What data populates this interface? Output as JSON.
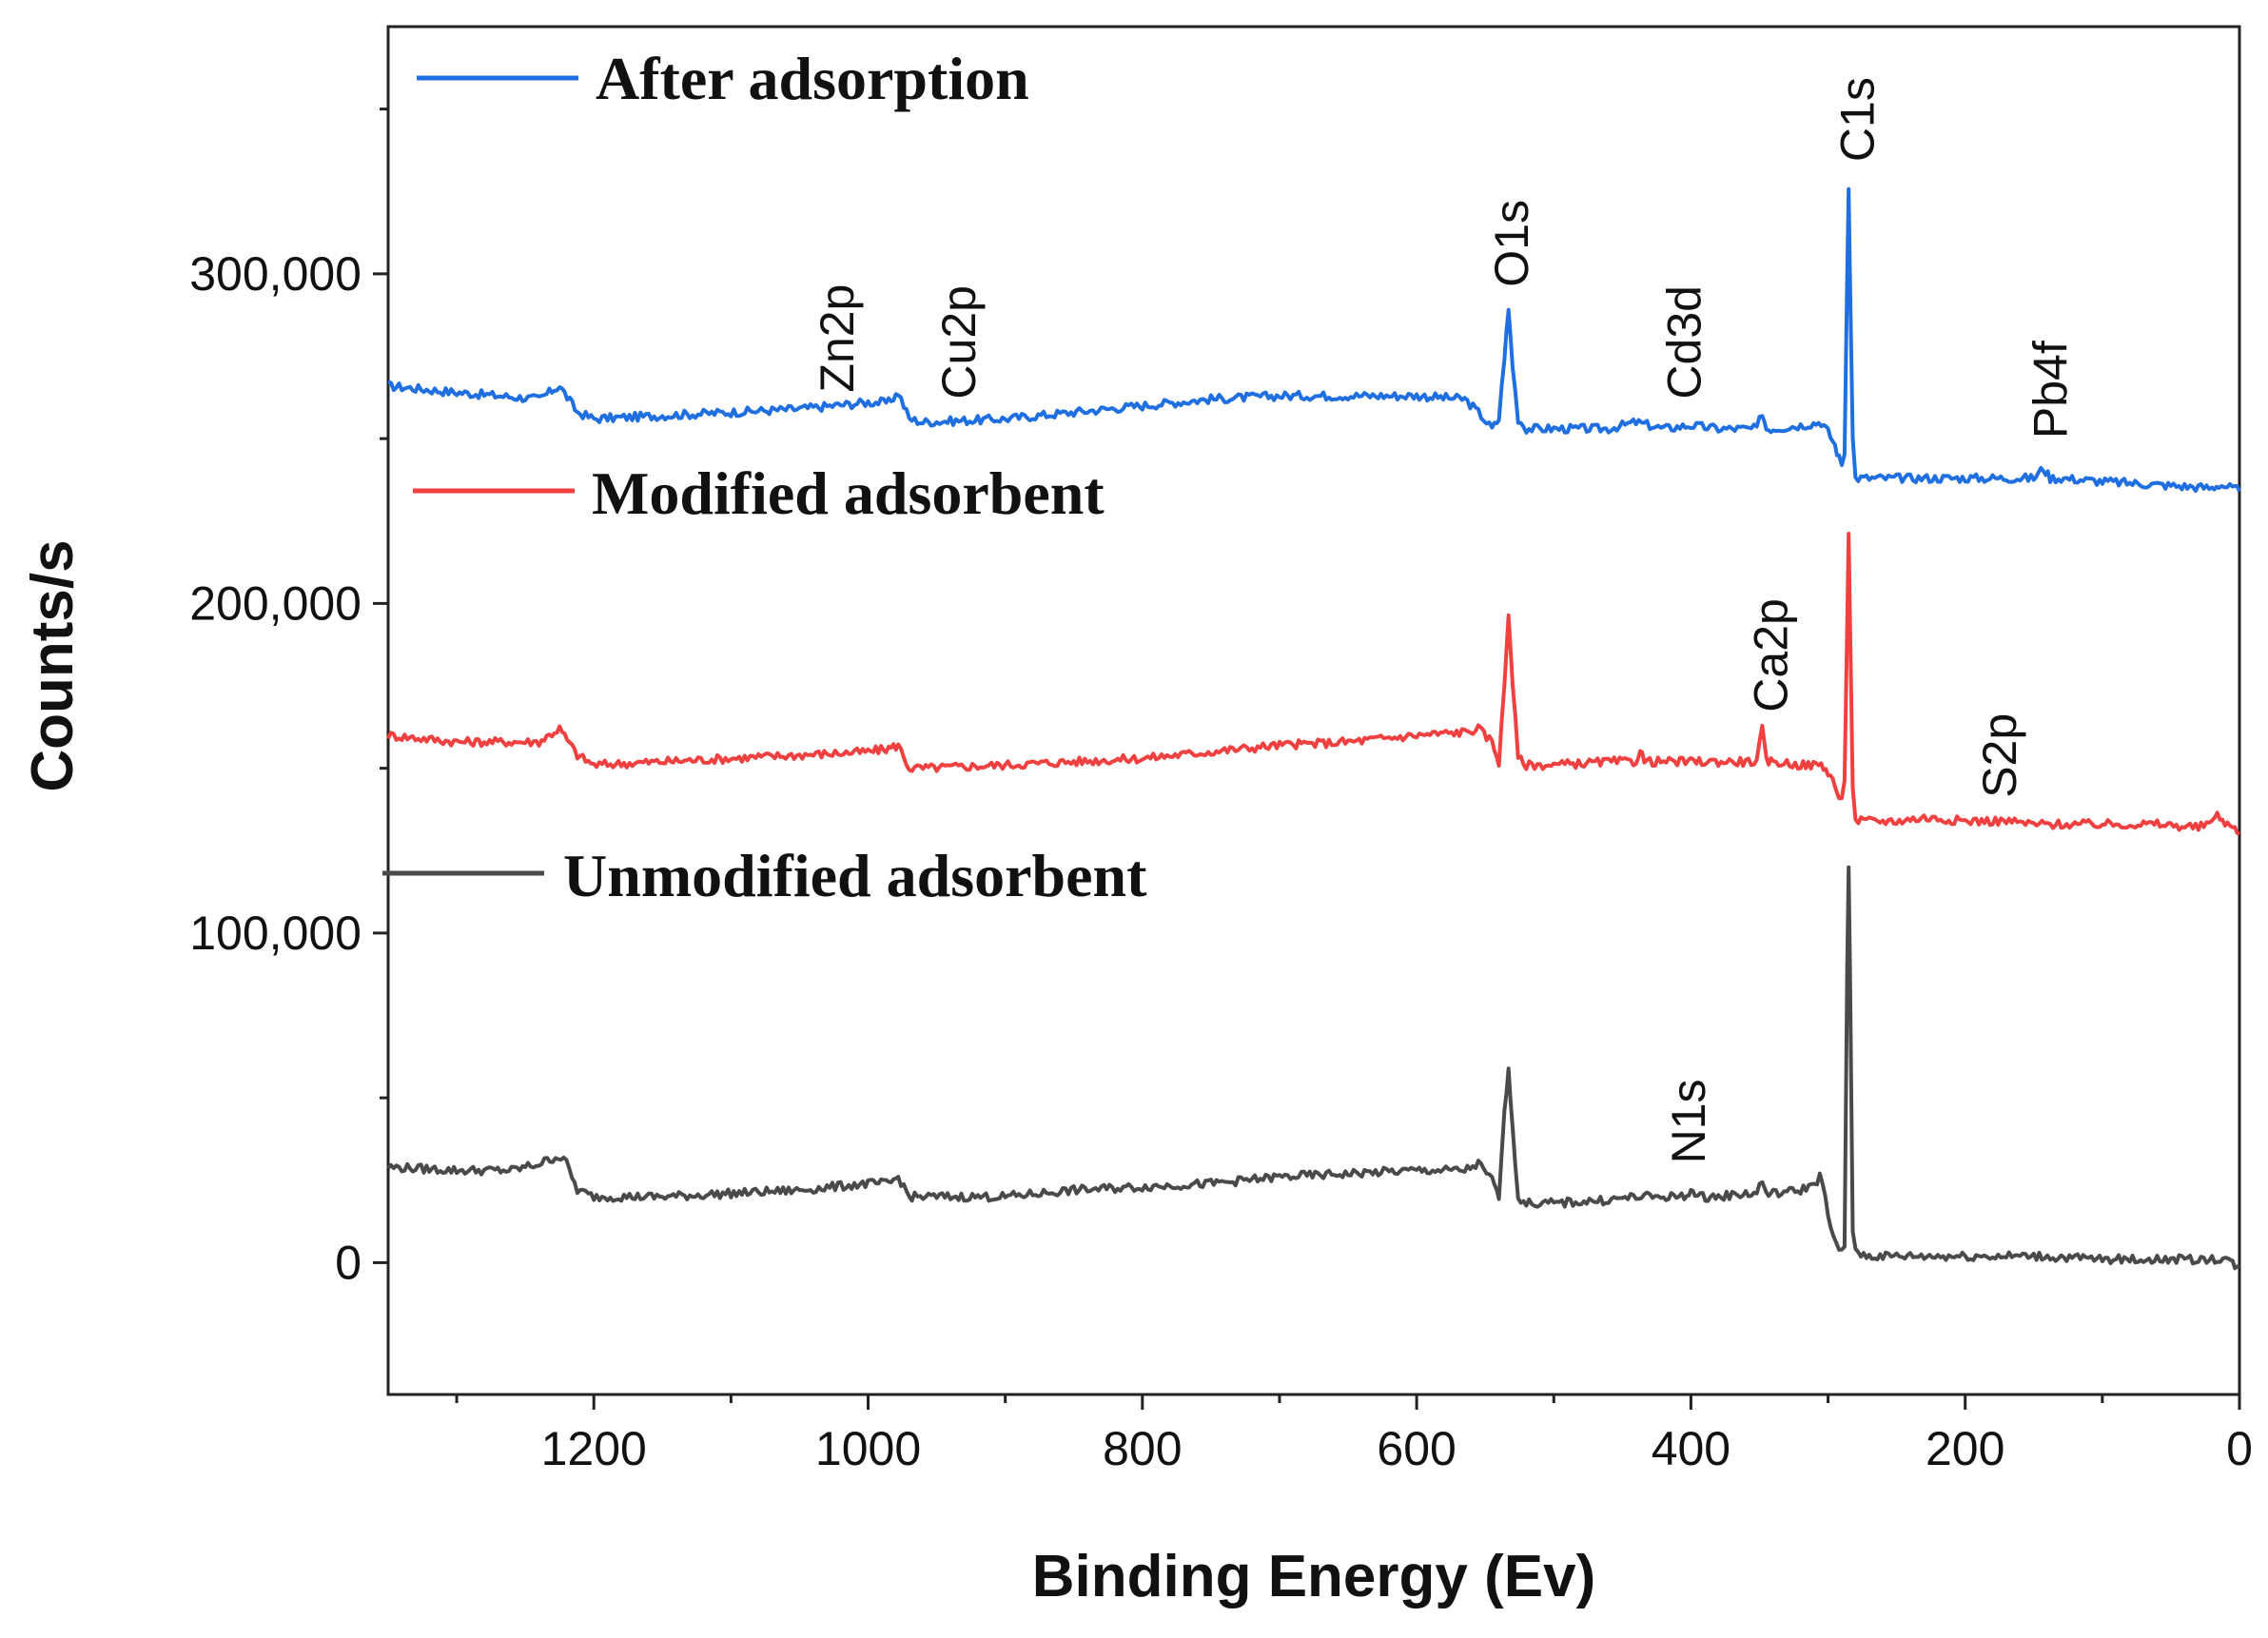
{
  "chart_data": {
    "type": "line",
    "title": "",
    "xlabel": "Binding Energy (Ev)",
    "ylabel": "Counts/s",
    "xlim": [
      1350,
      0
    ],
    "ylim": [
      -40000,
      375000
    ],
    "x_ticks": [
      {
        "value": 1200,
        "label": "1200"
      },
      {
        "value": 1000,
        "label": "1000"
      },
      {
        "value": 800,
        "label": "800"
      },
      {
        "value": 600,
        "label": "600"
      },
      {
        "value": 400,
        "label": "400"
      },
      {
        "value": 200,
        "label": "200"
      },
      {
        "value": 0,
        "label": "0"
      }
    ],
    "x_minor_ticks": [
      1300,
      1100,
      900,
      700,
      500,
      300,
      100
    ],
    "y_ticks": [
      {
        "value": 0,
        "label": "0"
      },
      {
        "value": 100000,
        "label": "100,000"
      },
      {
        "value": 200000,
        "label": "200,000"
      },
      {
        "value": 300000,
        "label": "300,000"
      }
    ],
    "y_minor_ticks": [
      50000,
      150000,
      250000,
      350000
    ],
    "series": [
      {
        "name": "After adsorption",
        "color": "#1f6fe0",
        "baseline": 258000,
        "x": [
          1350,
          1300,
          1240,
          1225,
          1212,
          1200,
          1150,
          1100,
          1050,
          1000,
          985,
          978,
          970,
          960,
          900,
          850,
          800,
          750,
          700,
          650,
          600,
          565,
          555,
          545,
          540,
          536,
          533,
          530,
          526,
          520,
          500,
          460,
          440,
          420,
          400,
          380,
          360,
          352,
          348,
          345,
          340,
          320,
          305,
          300,
          295,
          292,
          290,
          288,
          286,
          285,
          284,
          282,
          280,
          270,
          250,
          200,
          180,
          150,
          143,
          138,
          130,
          100,
          60,
          20,
          15,
          5,
          0
        ],
        "values": [
          266000,
          264000,
          262000,
          266000,
          258000,
          256000,
          257000,
          258000,
          259000,
          261000,
          261000,
          264000,
          256000,
          255000,
          256000,
          258000,
          260000,
          262000,
          263000,
          263000,
          263000,
          262000,
          258000,
          253000,
          256000,
          275000,
          289000,
          272000,
          256000,
          253000,
          253000,
          253000,
          255000,
          253000,
          254000,
          253000,
          253000,
          253000,
          258000,
          253000,
          253000,
          254000,
          255000,
          252000,
          248000,
          244000,
          242000,
          246000,
          300000,
          327000,
          300000,
          250000,
          238000,
          238000,
          238000,
          238000,
          238000,
          238000,
          241000,
          238000,
          238000,
          237000,
          236000,
          235000,
          236000,
          235000,
          234000
        ],
        "legend_label": "After adsorption"
      },
      {
        "name": "Modified adsorbent",
        "color": "#f04040",
        "baseline": 155000,
        "x": [
          1350,
          1300,
          1240,
          1225,
          1212,
          1200,
          1150,
          1100,
          1050,
          1000,
          985,
          978,
          970,
          960,
          900,
          850,
          800,
          750,
          700,
          650,
          600,
          565,
          555,
          545,
          540,
          536,
          533,
          530,
          526,
          520,
          500,
          460,
          440,
          437,
          434,
          420,
          400,
          380,
          360,
          352,
          348,
          345,
          340,
          320,
          305,
          300,
          295,
          292,
          290,
          288,
          286,
          285,
          284,
          282,
          280,
          270,
          250,
          230,
          200,
          170,
          150,
          100,
          60,
          30,
          22,
          18,
          5,
          0
        ],
        "values": [
          160000,
          158000,
          158000,
          162000,
          154000,
          151000,
          152000,
          153000,
          154000,
          155000,
          156000,
          157000,
          150000,
          150000,
          151000,
          152000,
          153000,
          155000,
          157000,
          158000,
          160000,
          161000,
          162000,
          158000,
          152000,
          175000,
          197000,
          176000,
          153000,
          151000,
          151000,
          152000,
          152000,
          156000,
          152000,
          152000,
          152000,
          152000,
          152000,
          152000,
          162000,
          152000,
          152000,
          151000,
          151000,
          149000,
          145000,
          141000,
          140000,
          145000,
          195000,
          222000,
          195000,
          145000,
          134000,
          134000,
          134000,
          135000,
          134000,
          134000,
          133000,
          133000,
          133000,
          132000,
          133000,
          136000,
          132000,
          130000
        ],
        "legend_label": "Modified adsorbent"
      },
      {
        "name": "Unmodified adsorbent",
        "color": "#4a4a4a",
        "baseline": 22000,
        "x": [
          1350,
          1300,
          1260,
          1240,
          1228,
          1222,
          1212,
          1200,
          1150,
          1100,
          1050,
          1000,
          985,
          978,
          970,
          960,
          900,
          850,
          800,
          750,
          700,
          650,
          600,
          565,
          555,
          545,
          540,
          536,
          533,
          530,
          526,
          520,
          500,
          460,
          440,
          420,
          403,
          400,
          397,
          380,
          360,
          352,
          348,
          345,
          340,
          320,
          310,
          306,
          302,
          298,
          294,
          290,
          288,
          286,
          285,
          284,
          282,
          280,
          270,
          250,
          200,
          150,
          100,
          60,
          30,
          20,
          10,
          5,
          0
        ],
        "values": [
          29000,
          28000,
          28000,
          30000,
          32000,
          32000,
          22000,
          20000,
          20000,
          21000,
          22000,
          24000,
          24000,
          26000,
          20000,
          20000,
          20000,
          22000,
          23000,
          24000,
          26000,
          27000,
          28000,
          28000,
          30000,
          25000,
          20000,
          45000,
          60000,
          40000,
          20000,
          18000,
          18000,
          19000,
          20000,
          20000,
          20000,
          23000,
          20000,
          20000,
          21000,
          21000,
          25000,
          21000,
          21000,
          22000,
          24000,
          26000,
          20000,
          10000,
          5000,
          3000,
          5000,
          90000,
          120000,
          90000,
          10000,
          3000,
          2000,
          2000,
          2000,
          2000,
          1000,
          1000,
          1000,
          1000,
          1500,
          -500,
          -1000
        ],
        "legend_label": "Unmodified adsorbent"
      }
    ],
    "annotations": [
      {
        "text": "Zn2p",
        "x": 1022,
        "y": 264000
      },
      {
        "text": "Cu2p",
        "x": 933,
        "y": 262000
      },
      {
        "text": "O1s",
        "x": 530,
        "y": 296000
      },
      {
        "text": "Cd3d",
        "x": 404,
        "y": 262000
      },
      {
        "text": "C1s",
        "x": 278,
        "y": 334000
      },
      {
        "text": "Pb4f",
        "x": 137,
        "y": 250000
      },
      {
        "text": "Ca2p",
        "x": 341,
        "y": 167000
      },
      {
        "text": "S2p",
        "x": 174,
        "y": 141000
      },
      {
        "text": "N1s",
        "x": 401,
        "y": 30000
      }
    ]
  }
}
